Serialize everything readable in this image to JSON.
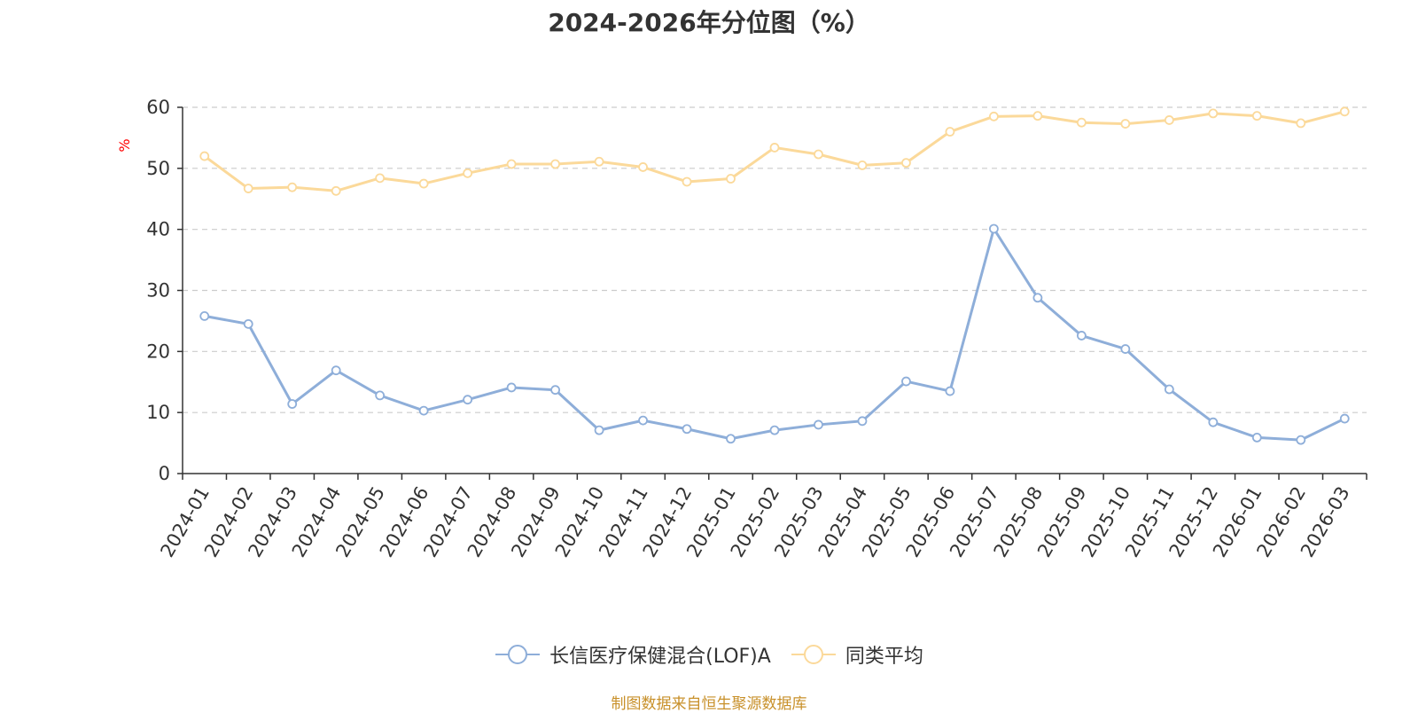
{
  "title": "2024-2026年分位图（%）",
  "source": "制图数据来自恒生聚源数据库",
  "colors": {
    "series1": "#8eaed9",
    "series2": "#fbd99a",
    "grid": "#cccccc",
    "axis": "#333333",
    "ylabel": "#ff0000"
  },
  "chart_data": {
    "type": "line",
    "title": "2024-2026年分位图（%）",
    "ylabel": "%",
    "ylim": [
      0,
      60
    ],
    "yticks": [
      0,
      10,
      20,
      30,
      40,
      50,
      60
    ],
    "grid": "horizontal-dashed",
    "legend_position": "bottom",
    "categories": [
      "2024-01",
      "2024-02",
      "2024-03",
      "2024-04",
      "2024-05",
      "2024-06",
      "2024-07",
      "2024-08",
      "2024-09",
      "2024-10",
      "2024-11",
      "2024-12",
      "2025-01",
      "2025-02",
      "2025-03",
      "2025-04",
      "2025-05",
      "2025-06",
      "2025-07",
      "2025-08",
      "2025-09",
      "2025-10",
      "2025-11",
      "2025-12",
      "2026-01",
      "2026-02",
      "2026-03"
    ],
    "series": [
      {
        "name": "长信医疗保健混合(LOF)A",
        "values": [
          25.8,
          24.5,
          11.4,
          16.9,
          12.8,
          10.3,
          12.1,
          14.1,
          13.7,
          7.1,
          8.7,
          7.3,
          5.7,
          7.1,
          8.0,
          8.6,
          15.1,
          13.5,
          40.1,
          28.8,
          22.6,
          20.4,
          13.8,
          8.4,
          5.9,
          5.5,
          9.0
        ]
      },
      {
        "name": "同类平均",
        "values": [
          52.0,
          46.7,
          46.9,
          46.3,
          48.4,
          47.5,
          49.2,
          50.7,
          50.7,
          51.1,
          50.2,
          47.8,
          48.3,
          53.4,
          52.3,
          50.5,
          50.9,
          56.0,
          58.5,
          58.6,
          57.5,
          57.3,
          57.9,
          59.0,
          58.6,
          57.4,
          59.3
        ]
      }
    ]
  }
}
